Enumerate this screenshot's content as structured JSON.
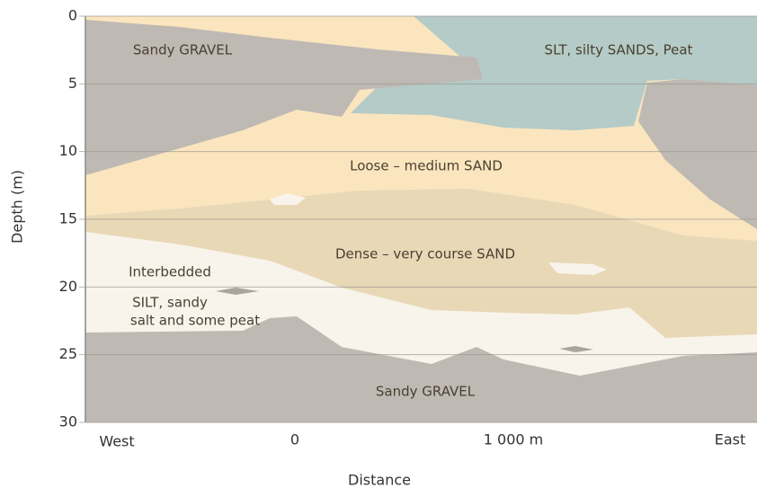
{
  "y_axis": {
    "label": "Depth (m)",
    "lim": [
      0,
      30
    ],
    "ticks": [
      0,
      5,
      10,
      15,
      20,
      25,
      30
    ]
  },
  "x_axis": {
    "label": "Distance",
    "ticks": [
      "West",
      "0",
      "1 000 m",
      "East"
    ]
  },
  "layers": [
    {
      "label": "Sandy GRAVEL"
    },
    {
      "label": "SLT, silty SANDS, Peat"
    },
    {
      "label": "Loose – medium SAND"
    },
    {
      "label": "Dense – very course SAND"
    },
    {
      "lines": [
        "Interbedded",
        "SILT, sandy",
        "salt and some peat"
      ]
    },
    {
      "label": "Sandy GRAVEL"
    }
  ]
}
